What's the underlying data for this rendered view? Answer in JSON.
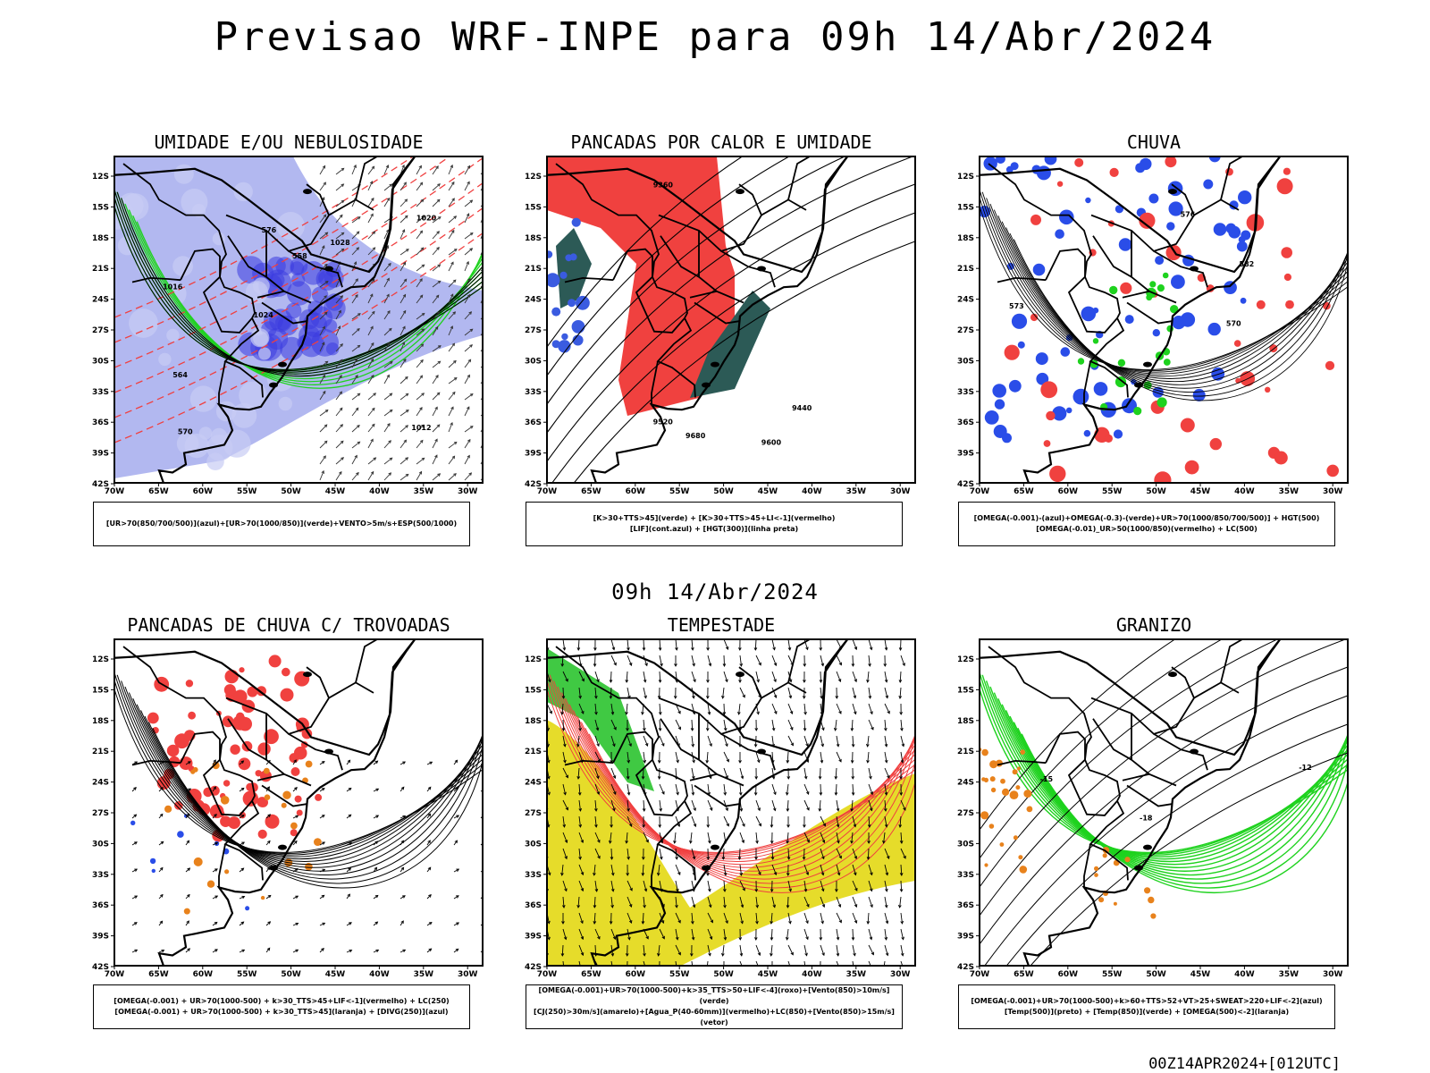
{
  "title": "Previsao WRF-INPE  para 09h 14/Abr/2024",
  "subtitle": "09h 14/Abr/2024",
  "footer": "00Z14APR2024+[012UTC]",
  "axes": {
    "lat_labels": [
      "12S",
      "15S",
      "18S",
      "21S",
      "24S",
      "27S",
      "30S",
      "33S",
      "36S",
      "39S",
      "42S"
    ],
    "lon_labels": [
      "70W",
      "65W",
      "60W",
      "55W",
      "50W",
      "45W",
      "40W",
      "35W",
      "30W"
    ]
  },
  "panels": [
    {
      "id": "umidade",
      "title": "UMIDADE E/OU NEBULOSIDADE",
      "legend": [
        "[UR>70(850/700/500)](azul)+[UR>70(1000/850)](verde)+VENTO>5m/s+ESP(500/1000)"
      ],
      "contour_labels": [
        "1012",
        "1016",
        "1020",
        "1024",
        "1028",
        "570",
        "576",
        "558",
        "564"
      ]
    },
    {
      "id": "pancadas-calor",
      "title": "PANCADAS POR CALOR E UMIDADE",
      "legend": [
        "[K>30+TTS>45](verde) + [K>30+TTS>45+LI<-1](vermelho)",
        "[LIF](cont.azul) + [HGT(300)](linha preta)"
      ],
      "contour_labels": [
        "9680",
        "9600",
        "9520",
        "9440",
        "9360"
      ]
    },
    {
      "id": "chuva",
      "title": "CHUVA",
      "legend": [
        "[OMEGA(-0.001)-(azul)+OMEGA(-0.3)-(verde)+UR>70(1000/850/700/500)] + HGT(500)",
        "[OMEGA(-0.01)_UR>50(1000/850)(vermelho) + LC(500)"
      ],
      "contour_labels": [
        "582",
        "576",
        "570",
        "573"
      ]
    },
    {
      "id": "trovoadas",
      "title": "PANCADAS DE CHUVA C/ TROVOADAS",
      "legend": [
        "[OMEGA(-0.001) + UR>70(1000-500) + k>30_TTS>45+LIF<-1](vermelho) + LC(250)",
        "[OMEGA(-0.001) + UR>70(1000-500) + k>30_TTS>45](laranja) + [DIVG(250)](azul)"
      ],
      "contour_labels": []
    },
    {
      "id": "tempestade",
      "title": "TEMPESTADE",
      "legend": [
        "[OMEGA(-0.001)+UR>70(1000-500)+k>35_TTS>50+LIF<-4](roxo)+[Vento(850)>10m/s](verde)",
        "[CJ(250)>30m/s](amarelo)+[Agua_P(40-60mm)](vermelho)+LC(850)+[Vento(850)>15m/s](vetor)"
      ],
      "contour_labels": []
    },
    {
      "id": "granizo",
      "title": "GRANIZO",
      "legend": [
        "[OMEGA(-0.001)+UR>70(1000-500)+k>60+TTS>52+VT>25+SWEAT>220+LIF<-2](azul)",
        "[Temp(500)](preto) + [Temp(850)](verde) + [OMEGA(500)<-2](laranja)"
      ],
      "contour_labels": [
        "-12",
        "-18",
        "-15"
      ]
    }
  ],
  "colors": {
    "blue_humidity": "#9fa6ec",
    "blue_dark": "#3a3ae0",
    "green": "#1ed21e",
    "red": "#f0413f",
    "dark_teal": "#2c5a56",
    "yellow": "#e6dc2a",
    "orange": "#e8821c",
    "contour_red": "#f04040"
  }
}
